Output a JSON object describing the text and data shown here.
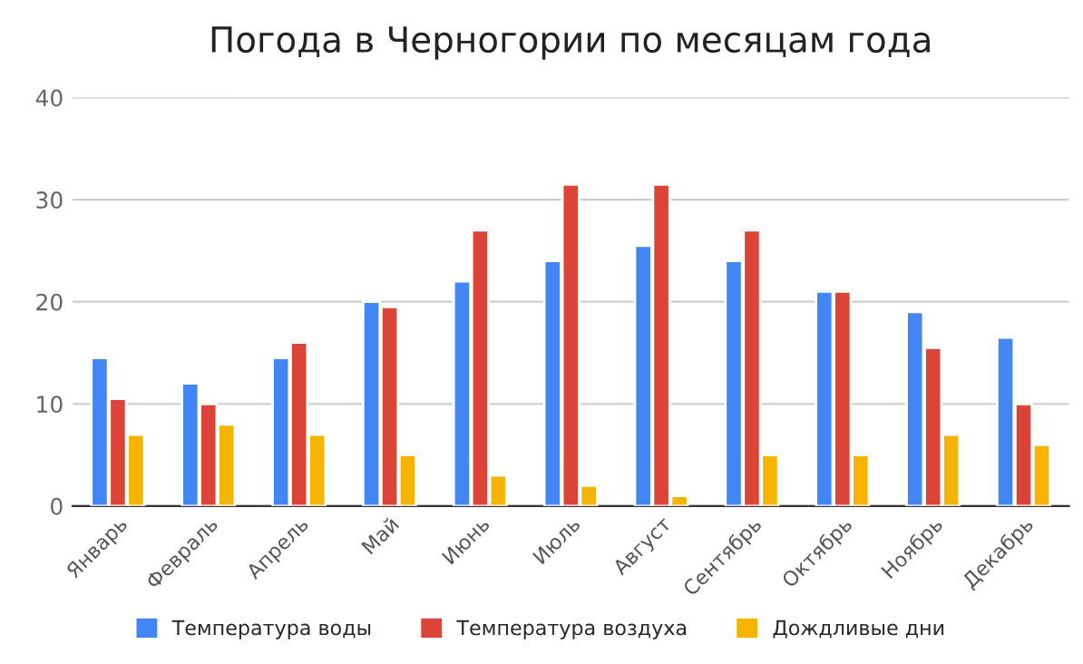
{
  "chart_data": {
    "type": "bar",
    "title": "Погода в Черногории по месяцам года",
    "categories": [
      "Январь",
      "Февраль",
      "Апрель",
      "Май",
      "Июнь",
      "Июль",
      "Август",
      "Сентябрь",
      "Октябрь",
      "Ноябрь",
      "Декабрь"
    ],
    "series": [
      {
        "name": "Температура воды",
        "color": "#4285f4",
        "values": [
          14.5,
          12,
          14.5,
          20,
          22,
          24,
          25.5,
          24,
          21,
          19,
          16.5
        ]
      },
      {
        "name": "Температура воздуха",
        "color": "#db4437",
        "values": [
          10.5,
          10,
          16,
          19.5,
          27,
          31.5,
          31.5,
          27,
          21,
          15.5,
          10
        ]
      },
      {
        "name": "Дождливые дни",
        "color": "#f4b400",
        "values": [
          7,
          8,
          7,
          5,
          3,
          2,
          1,
          5,
          5,
          7,
          6
        ]
      }
    ],
    "ylim": [
      0,
      40
    ],
    "yticks": [
      0,
      10,
      20,
      30,
      40
    ],
    "grid": "y",
    "legend": "bottom"
  }
}
